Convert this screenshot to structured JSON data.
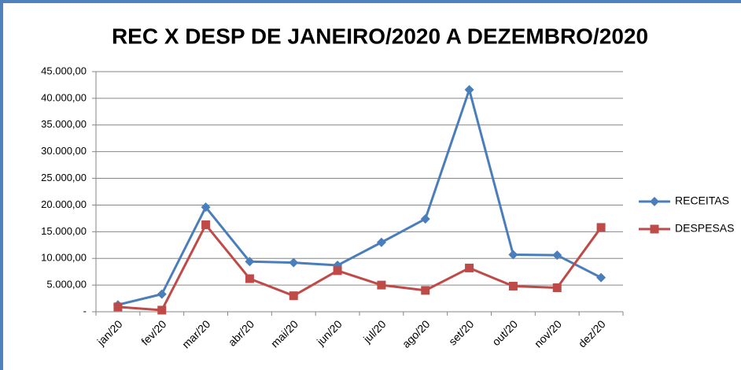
{
  "chart_data": {
    "type": "line",
    "title": "REC X DESP DE JANEIRO/2020 A DEZEMBRO/2020",
    "categories": [
      "jan/20",
      "fev/20",
      "mar/20",
      "abr/20",
      "mai/20",
      "jun/20",
      "jul/20",
      "ago/20",
      "set/20",
      "out/20",
      "nov/20",
      "dez/20"
    ],
    "series": [
      {
        "name": "RECEITAS",
        "color": "#4a7ebb",
        "marker": "diamond",
        "values": [
          1300,
          3300,
          19600,
          9400,
          9200,
          8700,
          13000,
          17400,
          41600,
          10700,
          10600,
          6400
        ]
      },
      {
        "name": "DESPESAS",
        "color": "#be4b48",
        "marker": "square",
        "values": [
          900,
          300,
          16300,
          6200,
          3000,
          7700,
          5000,
          4000,
          8200,
          4800,
          4500,
          15800
        ]
      }
    ],
    "ylim": [
      0,
      45000
    ],
    "yticks": [
      {
        "value": 0,
        "label": "-"
      },
      {
        "value": 5000,
        "label": "5.000,00"
      },
      {
        "value": 10000,
        "label": "10.000,00"
      },
      {
        "value": 15000,
        "label": "15.000,00"
      },
      {
        "value": 20000,
        "label": "20.000,00"
      },
      {
        "value": 25000,
        "label": "25.000,00"
      },
      {
        "value": 30000,
        "label": "30.000,00"
      },
      {
        "value": 35000,
        "label": "35.000,00"
      },
      {
        "value": 40000,
        "label": "40.000,00"
      },
      {
        "value": 45000,
        "label": "45.000,00"
      }
    ],
    "grid": true,
    "legend": "right"
  }
}
